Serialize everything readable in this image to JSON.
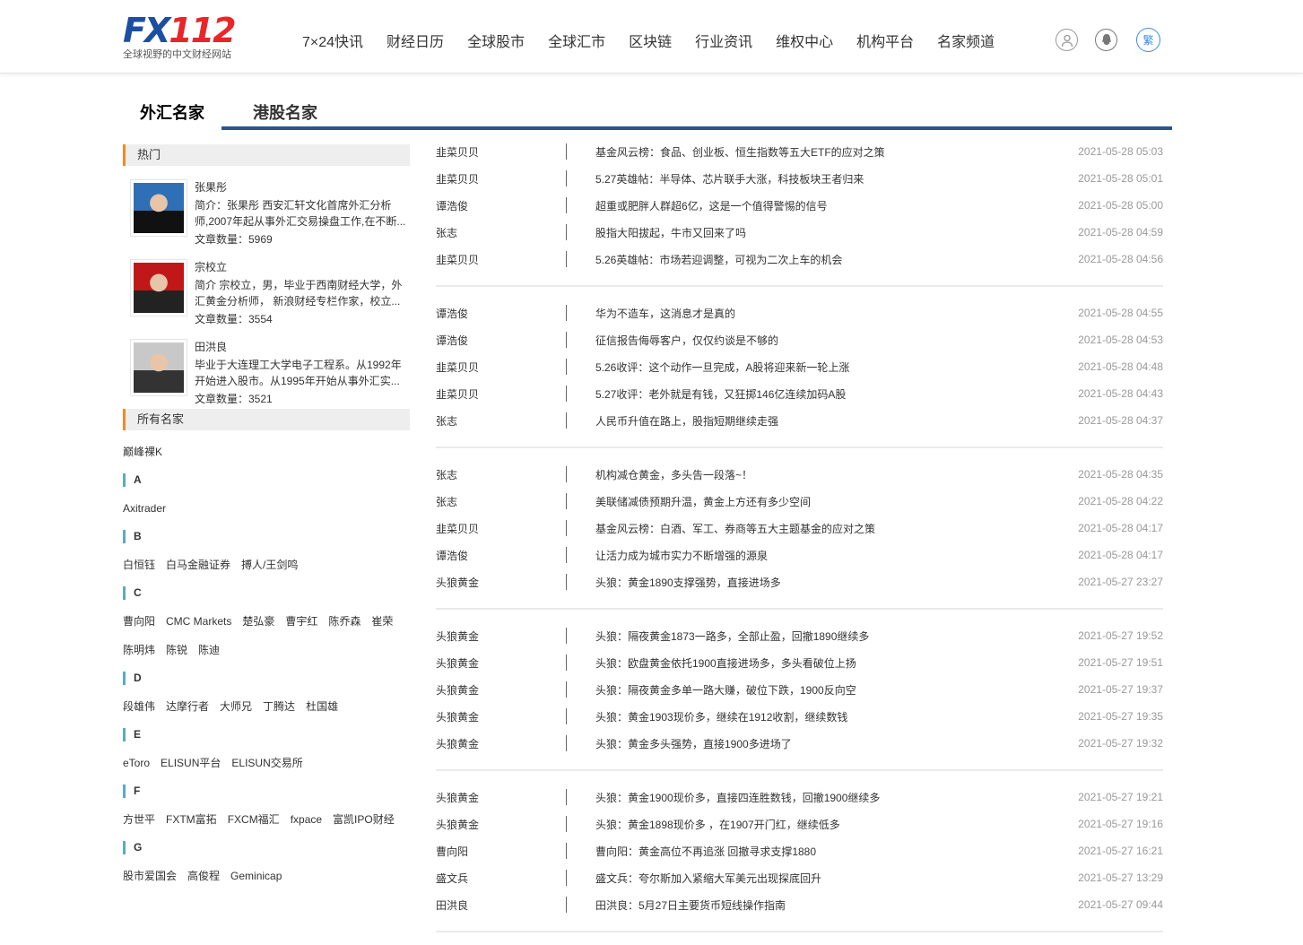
{
  "header": {
    "logo": "FX112",
    "slogan": "全球视野的中文财经网站",
    "nav": [
      "7×24快讯",
      "财经日历",
      "全球股市",
      "全球汇市",
      "区块链",
      "行业资讯",
      "维权中心",
      "机构平台",
      "名家频道"
    ],
    "icons": [
      "user-icon",
      "qq-icon"
    ],
    "lang_toggle": "繁"
  },
  "tabs": [
    "外汇名家",
    "港股名家"
  ],
  "sidebar": {
    "hot_title": "热门",
    "experts": [
      {
        "name": "张果彤",
        "intro": "简介：张果彤 西安汇轩文化首席外汇分析师,2007年起从事外汇交易操盘工作,在不断...",
        "count": "文章数量：5969"
      },
      {
        "name": "宗校立",
        "intro": "简介 宗校立，男，毕业于西南财经大学，外汇黄金分析师， 新浪财经专栏作家，校立...",
        "count": "文章数量：3554"
      },
      {
        "name": "田洪良",
        "intro": "毕业于大连理工大学电子工程系。从1992年开始进入股市。从1995年开始从事外汇实...",
        "count": "文章数量：3521"
      }
    ],
    "all_title": "所有名家",
    "top_names": [
      "巅峰裸K"
    ],
    "groups": [
      {
        "letter": "A",
        "names": [
          "Axitrader"
        ]
      },
      {
        "letter": "B",
        "names": [
          "白恒钰",
          "白马金融证券",
          "搏人/王剑鸣"
        ]
      },
      {
        "letter": "C",
        "names": [
          "曹向阳",
          "CMC Markets",
          "楚弘豪",
          "曹宇红",
          "陈乔森",
          "崔荣",
          "陈明炜",
          "陈锐",
          "陈迪"
        ]
      },
      {
        "letter": "D",
        "names": [
          "段雄伟",
          "达摩行者",
          "大师兄",
          "丁腾达",
          "杜国雄"
        ]
      },
      {
        "letter": "E",
        "names": [
          "eToro",
          "ELISUN平台",
          "ELISUN交易所"
        ]
      },
      {
        "letter": "F",
        "names": [
          "方世平",
          "FXTM富拓",
          "FXCM福汇",
          "fxpace",
          "富凯IPO财经"
        ]
      },
      {
        "letter": "G",
        "names": [
          "股市爱国会",
          "高俊程",
          "Geminicap"
        ]
      }
    ]
  },
  "articles": [
    [
      [
        "韭菜贝贝",
        "基金风云榜：食品、创业板、恒生指数等五大ETF的应对之策",
        "2021-05-28 05:03"
      ],
      [
        "韭菜贝贝",
        "5.27英雄帖：半导体、芯片联手大涨，科技板块王者归来",
        "2021-05-28 05:01"
      ],
      [
        "谭浩俊",
        "超重或肥胖人群超6亿，这是一个值得警惕的信号",
        "2021-05-28 05:00"
      ],
      [
        "张志",
        "股指大阳拔起，牛市又回来了吗",
        "2021-05-28 04:59"
      ],
      [
        "韭菜贝贝",
        "5.26英雄帖：市场若迎调整，可视为二次上车的机会",
        "2021-05-28 04:56"
      ]
    ],
    [
      [
        "谭浩俊",
        "华为不造车，这消息才是真的",
        "2021-05-28 04:55"
      ],
      [
        "谭浩俊",
        "征信报告侮辱客户，仅仅约谈是不够的",
        "2021-05-28 04:53"
      ],
      [
        "韭菜贝贝",
        "5.26收评：这个动作一旦完成，A股将迎来新一轮上涨",
        "2021-05-28 04:48"
      ],
      [
        "韭菜贝贝",
        "5.27收评：老外就是有钱，又狂掷146亿连续加码A股",
        "2021-05-28 04:43"
      ],
      [
        "张志",
        "人民币升值在路上，股指短期继续走强",
        "2021-05-28 04:37"
      ]
    ],
    [
      [
        "张志",
        "机构减仓黄金，多头告一段落~！",
        "2021-05-28 04:35"
      ],
      [
        "张志",
        "美联储减债预期升温，黄金上方还有多少空间",
        "2021-05-28 04:22"
      ],
      [
        "韭菜贝贝",
        "基金风云榜：白酒、军工、券商等五大主题基金的应对之策",
        "2021-05-28 04:17"
      ],
      [
        "谭浩俊",
        "让活力成为城市实力不断增强的源泉",
        "2021-05-28 04:17"
      ],
      [
        "头狼黄金",
        "头狼：黄金1890支撑强势，直接进场多",
        "2021-05-27 23:27"
      ]
    ],
    [
      [
        "头狼黄金",
        "头狼：隔夜黄金1873一路多，全部止盈，回撤1890继续多",
        "2021-05-27 19:52"
      ],
      [
        "头狼黄金",
        "头狼：欧盘黄金依托1900直接进场多，多头看破位上扬",
        "2021-05-27 19:51"
      ],
      [
        "头狼黄金",
        "头狼：隔夜黄金多单一路大赚，破位下跌，1900反向空",
        "2021-05-27 19:37"
      ],
      [
        "头狼黄金",
        "头狼：黄金1903现价多，继续在1912收割，继续数钱",
        "2021-05-27 19:35"
      ],
      [
        "头狼黄金",
        "头狼：黄金多头强势，直接1900多进场了",
        "2021-05-27 19:32"
      ]
    ],
    [
      [
        "头狼黄金",
        "头狼：黄金1900现价多，直接四连胜数钱，回撤1900继续多",
        "2021-05-27 19:21"
      ],
      [
        "头狼黄金",
        "头狼：黄金1898现价多 ，在1907开门红，继续低多",
        "2021-05-27 19:16"
      ],
      [
        "曹向阳",
        "曹向阳：黄金高位不再追涨 回撤寻求支撑1880",
        "2021-05-27 16:21"
      ],
      [
        "盛文兵",
        "盛文兵：夸尔斯加入紧缩大军美元出现探底回升",
        "2021-05-27 13:29"
      ],
      [
        "田洪良",
        "田洪良：5月27日主要货币短线操作指南",
        "2021-05-27 09:44"
      ]
    ]
  ]
}
